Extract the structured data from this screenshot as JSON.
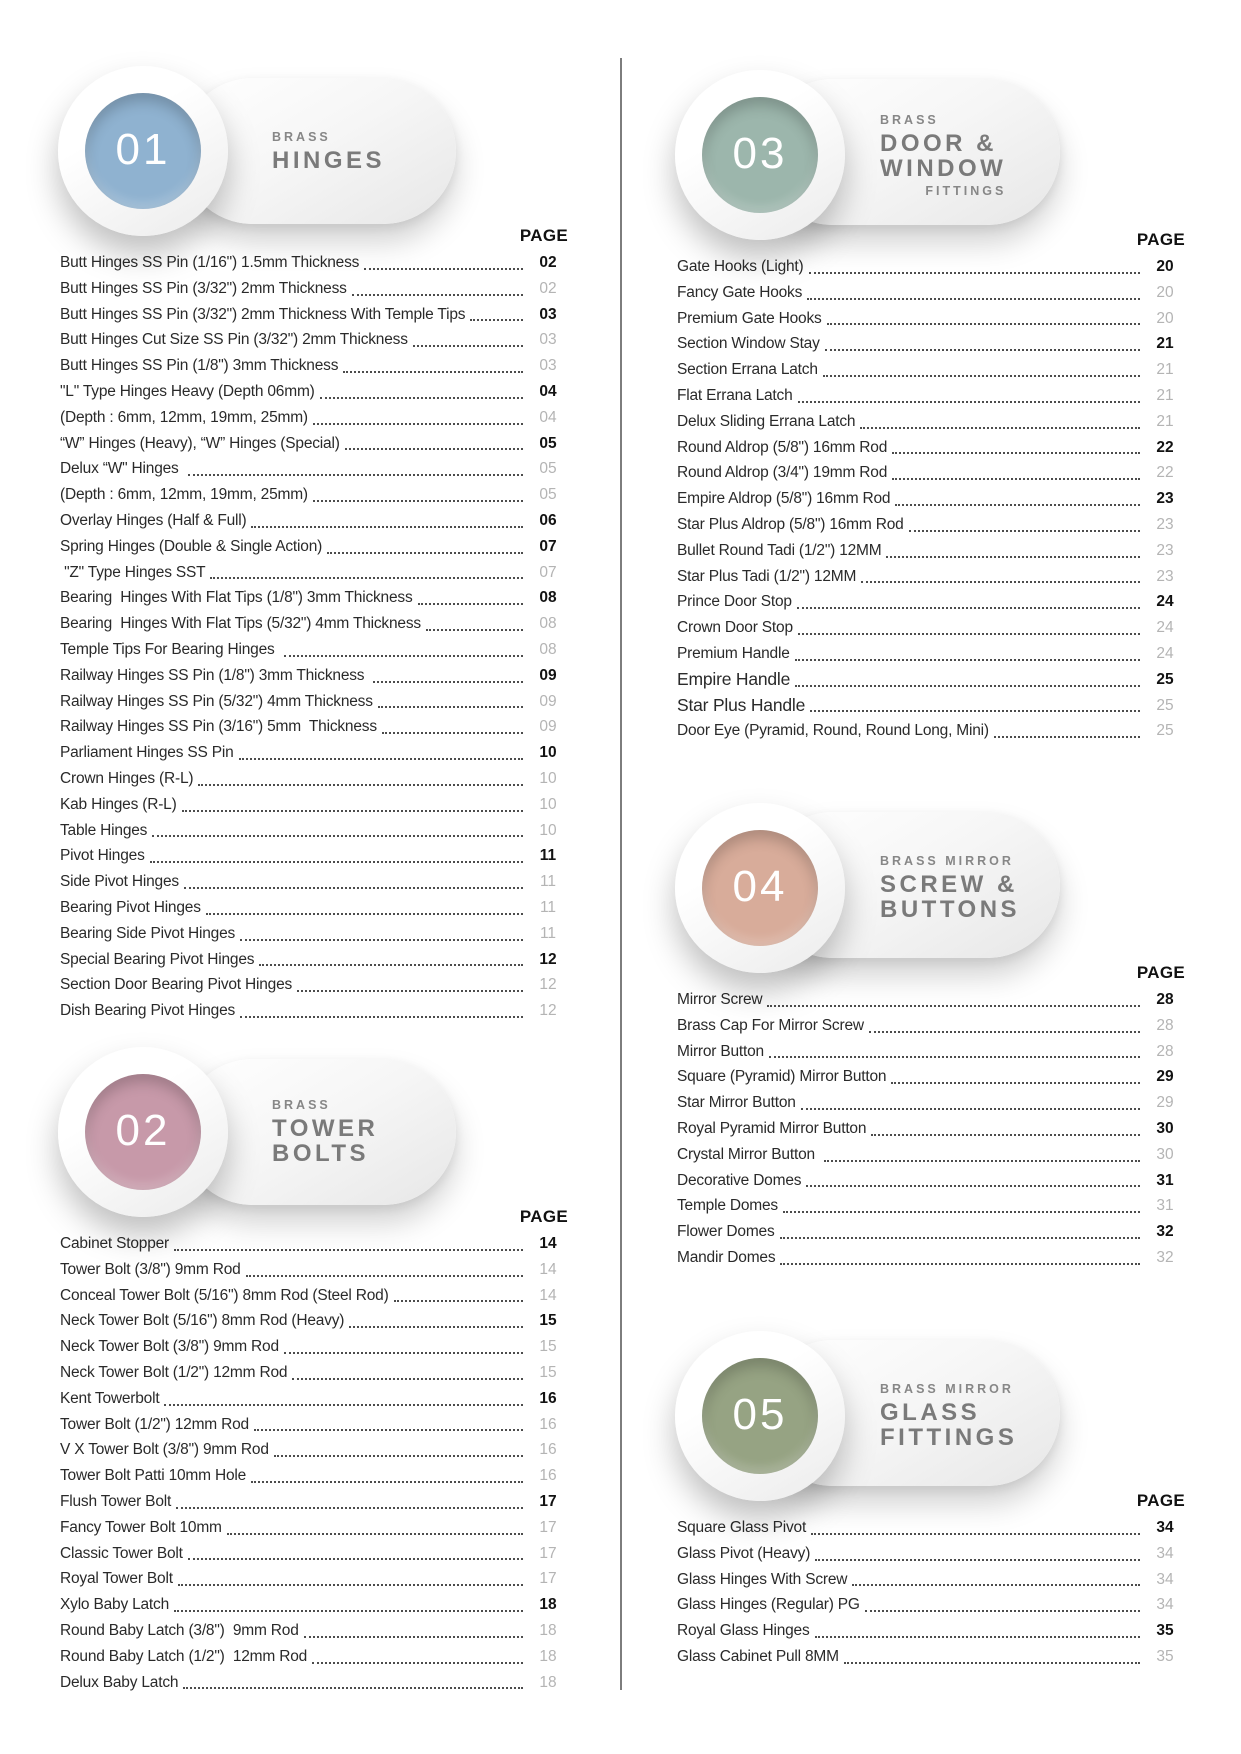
{
  "page_label": "PAGE",
  "sections": [
    {
      "number": "01",
      "eyebrow": "BRASS",
      "title_lines": [
        "HINGES"
      ],
      "tail": "",
      "circle_color": "#8FB2D0",
      "items": [
        {
          "label": "Butt Hinges SS Pin (1/16\") 1.5mm Thickness",
          "page": "02",
          "muted": false
        },
        {
          "label": "Butt Hinges SS Pin (3/32\") 2mm Thickness",
          "page": "02",
          "muted": true
        },
        {
          "label": "Butt Hinges SS Pin (3/32\") 2mm Thickness With Temple Tips",
          "page": "03",
          "muted": false
        },
        {
          "label": "Butt Hinges Cut Size SS Pin (3/32\") 2mm Thickness",
          "page": "03",
          "muted": true
        },
        {
          "label": "Butt Hinges SS Pin (1/8\") 3mm Thickness",
          "page": "03",
          "muted": true
        },
        {
          "label": "\"L\" Type Hinges Heavy (Depth 06mm)",
          "page": "04",
          "muted": false
        },
        {
          "label": "(Depth : 6mm, 12mm, 19mm, 25mm)",
          "page": "04",
          "muted": true
        },
        {
          "label": "“W” Hinges (Heavy), “W” Hinges (Special)",
          "page": "05",
          "muted": false
        },
        {
          "label": "Delux “W\" Hinges ",
          "page": "05",
          "muted": true
        },
        {
          "label": "(Depth : 6mm, 12mm, 19mm, 25mm)",
          "page": "05",
          "muted": true
        },
        {
          "label": "Overlay Hinges (Half & Full)",
          "page": "06",
          "muted": false
        },
        {
          "label": "Spring Hinges (Double & Single Action)",
          "page": "07",
          "muted": false
        },
        {
          "label": " \"Z\" Type Hinges SST",
          "page": "07",
          "muted": true
        },
        {
          "label": "Bearing  Hinges With Flat Tips (1/8\") 3mm Thickness",
          "page": "08",
          "muted": false
        },
        {
          "label": "Bearing  Hinges With Flat Tips (5/32\") 4mm Thickness",
          "page": "08",
          "muted": true
        },
        {
          "label": "Temple Tips For Bearing Hinges ",
          "page": "08",
          "muted": true
        },
        {
          "label": "Railway Hinges SS Pin (1/8\") 3mm Thickness ",
          "page": "09",
          "muted": false
        },
        {
          "label": "Railway Hinges SS Pin (5/32\") 4mm Thickness",
          "page": "09",
          "muted": true
        },
        {
          "label": "Railway Hinges SS Pin (3/16\") 5mm  Thickness",
          "page": "09",
          "muted": true
        },
        {
          "label": "Parliament Hinges SS Pin",
          "page": "10",
          "muted": false
        },
        {
          "label": "Crown Hinges (R-L)",
          "page": "10",
          "muted": true
        },
        {
          "label": "Kab Hinges (R-L)",
          "page": "10",
          "muted": true
        },
        {
          "label": "Table Hinges",
          "page": "10",
          "muted": true
        },
        {
          "label": "Pivot Hinges",
          "page": "11",
          "muted": false
        },
        {
          "label": "Side Pivot Hinges",
          "page": "11",
          "muted": true
        },
        {
          "label": "Bearing Pivot Hinges",
          "page": "11",
          "muted": true
        },
        {
          "label": "Bearing Side Pivot Hinges",
          "page": "11",
          "muted": true
        },
        {
          "label": "Special Bearing Pivot Hinges",
          "page": "12",
          "muted": false
        },
        {
          "label": "Section Door Bearing Pivot Hinges",
          "page": "12",
          "muted": true
        },
        {
          "label": "Dish Bearing Pivot Hinges",
          "page": "12",
          "muted": true
        }
      ]
    },
    {
      "number": "02",
      "eyebrow": "BRASS",
      "title_lines": [
        "TOWER",
        "BOLTS"
      ],
      "tail": "",
      "circle_color": "#C799A9",
      "items": [
        {
          "label": "Cabinet Stopper",
          "page": "14",
          "muted": false
        },
        {
          "label": "Tower Bolt (3/8\") 9mm Rod",
          "page": "14",
          "muted": true
        },
        {
          "label": "Conceal Tower Bolt (5/16\") 8mm Rod (Steel Rod)",
          "page": "14",
          "muted": true
        },
        {
          "label": "Neck Tower Bolt (5/16\") 8mm Rod (Heavy)",
          "page": "15",
          "muted": false
        },
        {
          "label": "Neck Tower Bolt (3/8\") 9mm Rod",
          "page": "15",
          "muted": true
        },
        {
          "label": "Neck Tower Bolt (1/2\") 12mm Rod",
          "page": "15",
          "muted": true
        },
        {
          "label": "Kent Towerbolt",
          "page": "16",
          "muted": false
        },
        {
          "label": "Tower Bolt (1/2\") 12mm Rod",
          "page": "16",
          "muted": true
        },
        {
          "label": "V X Tower Bolt (3/8\") 9mm Rod",
          "page": "16",
          "muted": true
        },
        {
          "label": "Tower Bolt Patti 10mm Hole",
          "page": "16",
          "muted": true
        },
        {
          "label": "Flush Tower Bolt",
          "page": "17",
          "muted": false
        },
        {
          "label": "Fancy Tower Bolt 10mm",
          "page": "17",
          "muted": true
        },
        {
          "label": "Classic Tower Bolt",
          "page": "17",
          "muted": true
        },
        {
          "label": "Royal Tower Bolt",
          "page": "17",
          "muted": true
        },
        {
          "label": "Xylo Baby Latch",
          "page": "18",
          "muted": false
        },
        {
          "label": "Round Baby Latch (3/8\")  9mm Rod",
          "page": "18",
          "muted": true
        },
        {
          "label": "Round Baby Latch (1/2\")  12mm Rod",
          "page": "18",
          "muted": true
        },
        {
          "label": "Delux Baby Latch",
          "page": "18",
          "muted": true
        }
      ]
    },
    {
      "number": "03",
      "eyebrow": "BRASS",
      "title_lines": [
        "DOOR &",
        "WINDOW"
      ],
      "tail": "FITTINGS",
      "circle_color": "#9CB6AC",
      "items": [
        {
          "label": "Gate Hooks (Light)",
          "page": "20",
          "muted": false
        },
        {
          "label": "Fancy Gate Hooks",
          "page": "20",
          "muted": true
        },
        {
          "label": "Premium Gate Hooks",
          "page": "20",
          "muted": true
        },
        {
          "label": "Section Window Stay",
          "page": "21",
          "muted": false
        },
        {
          "label": "Section Errana Latch",
          "page": "21",
          "muted": true
        },
        {
          "label": "Flat Errana Latch",
          "page": "21",
          "muted": true
        },
        {
          "label": "Delux Sliding Errana Latch",
          "page": "21",
          "muted": true
        },
        {
          "label": "Round Aldrop (5/8\") 16mm Rod",
          "page": "22",
          "muted": false
        },
        {
          "label": "Round Aldrop (3/4\") 19mm Rod",
          "page": "22",
          "muted": true
        },
        {
          "label": "Empire Aldrop (5/8\") 16mm Rod",
          "page": "23",
          "muted": false
        },
        {
          "label": "Star Plus Aldrop (5/8\") 16mm Rod",
          "page": "23",
          "muted": true
        },
        {
          "label": "Bullet Round Tadi (1/2\") 12MM",
          "page": "23",
          "muted": true
        },
        {
          "label": "Star Plus Tadi (1/2\") 12MM",
          "page": "23",
          "muted": true
        },
        {
          "label": "Prince Door Stop",
          "page": "24",
          "muted": false
        },
        {
          "label": "Crown Door Stop",
          "page": "24",
          "muted": true
        },
        {
          "label": "Premium Handle",
          "page": "24",
          "muted": true
        },
        {
          "label": "Empire Handle",
          "page": "25",
          "muted": false,
          "large": true
        },
        {
          "label": "Star Plus Handle",
          "page": "25",
          "muted": true,
          "large": true
        },
        {
          "label": "Door Eye (Pyramid, Round, Round Long, Mini)",
          "page": "25",
          "muted": true
        }
      ]
    },
    {
      "number": "04",
      "eyebrow": "BRASS MIRROR",
      "title_lines": [
        "SCREW &",
        "BUTTONS"
      ],
      "tail": "",
      "circle_color": "#D8AC9A",
      "items": [
        {
          "label": "Mirror Screw",
          "page": "28",
          "muted": false
        },
        {
          "label": "Brass Cap For Mirror Screw",
          "page": "28",
          "muted": true
        },
        {
          "label": "Mirror Button",
          "page": "28",
          "muted": true
        },
        {
          "label": "Square (Pyramid) Mirror Button",
          "page": "29",
          "muted": false
        },
        {
          "label": "Star Mirror Button",
          "page": "29",
          "muted": true
        },
        {
          "label": "Royal Pyramid Mirror Button",
          "page": "30",
          "muted": false
        },
        {
          "label": "Crystal Mirror Button ",
          "page": "30",
          "muted": true
        },
        {
          "label": "Decorative Domes",
          "page": "31",
          "muted": false
        },
        {
          "label": "Temple Domes",
          "page": "31",
          "muted": true
        },
        {
          "label": "Flower Domes",
          "page": "32",
          "muted": false
        },
        {
          "label": "Mandir Domes",
          "page": "32",
          "muted": true
        }
      ]
    },
    {
      "number": "05",
      "eyebrow": "BRASS MIRROR",
      "title_lines": [
        "GLASS",
        "FITTINGS"
      ],
      "tail": "",
      "circle_color": "#96A383",
      "items": [
        {
          "label": "Square Glass Pivot",
          "page": "34",
          "muted": false
        },
        {
          "label": "Glass Pivot (Heavy)",
          "page": "34",
          "muted": true
        },
        {
          "label": "Glass Hinges With Screw",
          "page": "34",
          "muted": true
        },
        {
          "label": "Glass Hinges (Regular) PG",
          "page": "34",
          "muted": true
        },
        {
          "label": "Royal Glass Hinges",
          "page": "35",
          "muted": false
        },
        {
          "label": "Glass Cabinet Pull 8MM",
          "page": "35",
          "muted": true
        }
      ]
    }
  ]
}
